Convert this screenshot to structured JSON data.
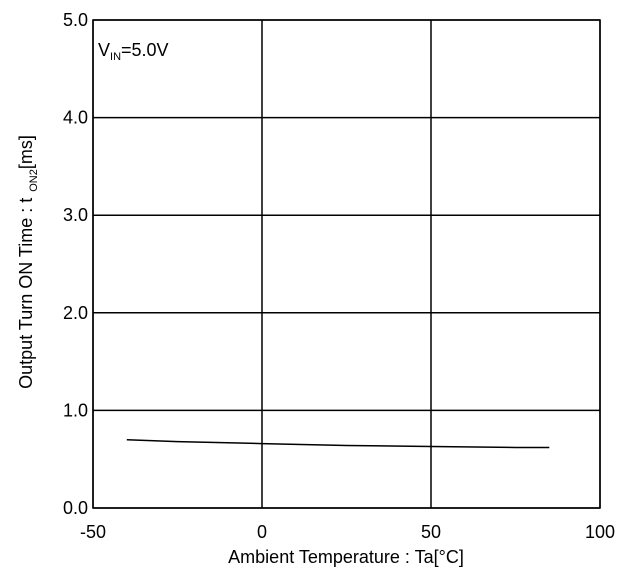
{
  "chart_data": {
    "type": "line",
    "title": "",
    "xlabel": "Ambient Temperature : Ta[°C]",
    "ylabel": {
      "main": "Output Turn ON Time : t",
      "subscript": "ON2",
      "unit": "[ms]"
    },
    "annotation": {
      "main": "V",
      "subscript": "IN",
      "rest": "=5.0V"
    },
    "xlim": [
      -50,
      100
    ],
    "ylim": [
      0.0,
      5.0
    ],
    "x_ticks": [
      "-50",
      "0",
      "50",
      "100"
    ],
    "x_tick_values": [
      -50,
      0,
      50,
      100
    ],
    "y_ticks": [
      "0.0",
      "1.0",
      "2.0",
      "3.0",
      "4.0",
      "5.0"
    ],
    "y_tick_values": [
      0,
      1,
      2,
      3,
      4,
      5
    ],
    "grid": true,
    "series": [
      {
        "x": [
          -40,
          -25,
          0,
          25,
          50,
          75,
          85
        ],
        "y": [
          0.7,
          0.68,
          0.66,
          0.64,
          0.63,
          0.62,
          0.62
        ]
      }
    ],
    "line_color": "#000000"
  }
}
